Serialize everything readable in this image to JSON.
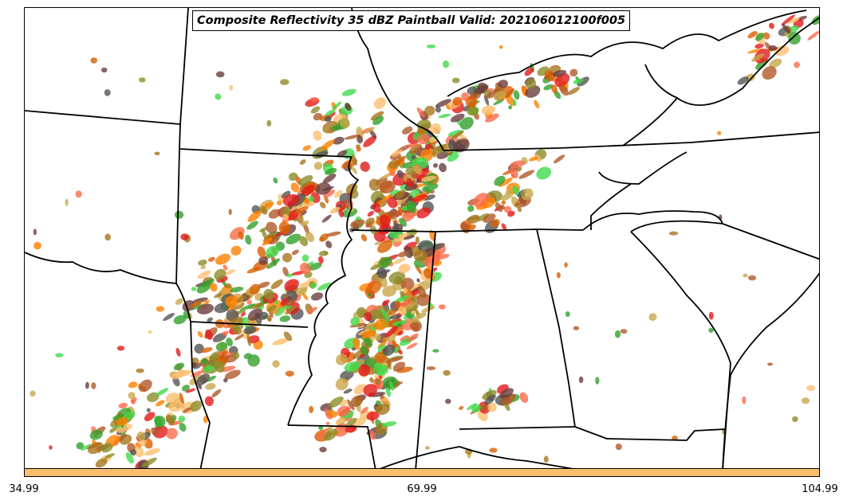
{
  "title": "Composite Reflectivity 35 dBZ Paintball Valid: 202106012100f005",
  "colorbar": {
    "color": "#fdbf6f"
  },
  "colorbar_ticks": [
    "34.99",
    "69.99",
    "104.99"
  ],
  "member_colors": [
    "#e31a1c",
    "#ff7f00",
    "#fb6a4a",
    "#fdbf6f",
    "#33a02c",
    "#41d94b",
    "#8c8c2a",
    "#a6761d",
    "#b15928",
    "#6a3d3d",
    "#555555",
    "#c8a84b",
    "#d95f02"
  ],
  "map": {
    "boundaries": "state and coastline outlines (black)"
  }
}
